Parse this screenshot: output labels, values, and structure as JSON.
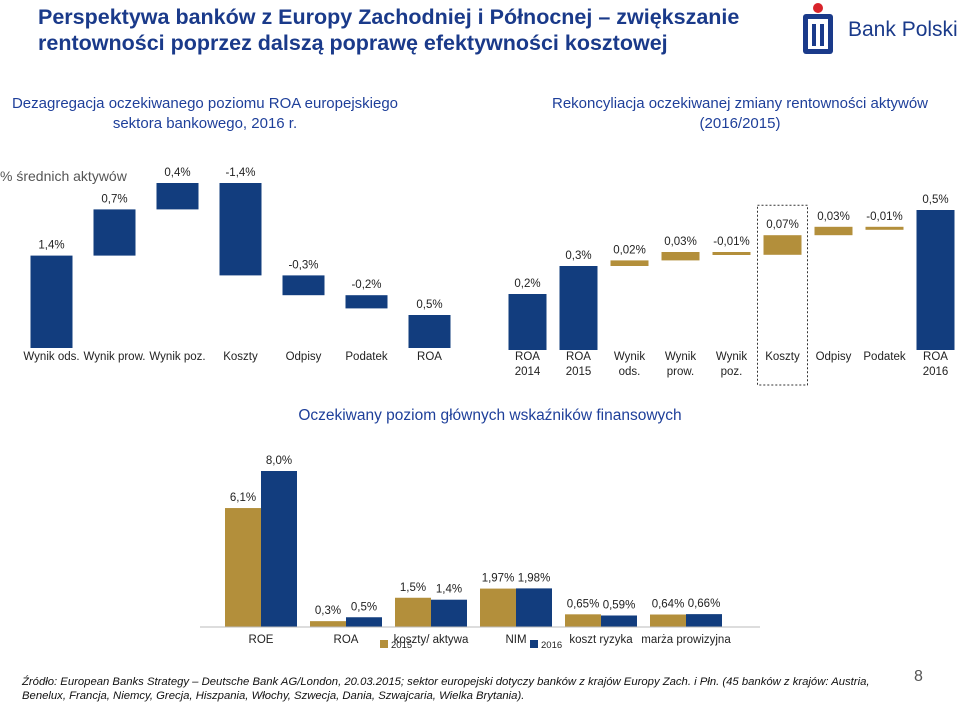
{
  "header": {
    "title": "Perspektywa banków z Europy Zachodniej i Północnej – zwiększanie rentowności poprzez dalszą poprawę efektywności kosztowej",
    "logo_text": "Bank Polski"
  },
  "colors": {
    "navy": "#123d7e",
    "gold": "#b38f3b",
    "title": "#1a3a8a"
  },
  "chart_data": [
    {
      "type": "bar",
      "title": "Dezagregacja oczekiwanego poziomu ROA europejskiego sektora bankowego, 2016 r.",
      "ylabel": "% średnich aktywów",
      "categories": [
        "Wynik ods.",
        "Wynik prow.",
        "Wynik poz.",
        "Koszty",
        "Odpisy",
        "Podatek",
        "ROA"
      ],
      "values": [
        1.4,
        0.7,
        0.4,
        -1.4,
        -0.3,
        -0.2,
        0.5
      ],
      "value_labels": [
        "1,4%",
        "0,7%",
        "0,4%",
        "-1,4%",
        "-0,3%",
        "-0,2%",
        "0,5%"
      ],
      "style": "waterfall"
    },
    {
      "type": "bar",
      "title": "Rekoncyliacja oczekiwanej zmiany rentowności aktywów (2016/2015)",
      "categories": [
        "ROA 2014",
        "ROA 2015",
        "Wynik ods.",
        "Wynik prow.",
        "Wynik poz.",
        "Koszty",
        "Odpisy",
        "Podatek",
        "ROA 2016"
      ],
      "category_lines": [
        [
          "ROA",
          "2014"
        ],
        [
          "ROA",
          "2015"
        ],
        [
          "Wynik",
          "ods."
        ],
        [
          "Wynik",
          "prow."
        ],
        [
          "Wynik",
          "poz."
        ],
        [
          "Koszty"
        ],
        [
          "Odpisy"
        ],
        [
          "Podatek"
        ],
        [
          "ROA",
          "2016"
        ]
      ],
      "values": [
        0.2,
        0.3,
        0.02,
        0.03,
        -0.01,
        0.07,
        0.03,
        -0.01,
        0.5
      ],
      "value_labels": [
        "0,2%",
        "0,3%",
        "0,02%",
        "0,03%",
        "-0,01%",
        "0,07%",
        "0,03%",
        "-0,01%",
        "0,5%"
      ],
      "style": "waterfall",
      "highlight_category": "Koszty"
    },
    {
      "type": "bar",
      "title": "Oczekiwany poziom głównych wskaźników finansowych",
      "categories": [
        "ROE",
        "ROA",
        "koszty/ aktywa",
        "NIM",
        "koszt ryzyka",
        "marża prowizyjna"
      ],
      "series": [
        {
          "name": "2015",
          "values": [
            6.1,
            0.3,
            1.5,
            1.97,
            0.65,
            0.64
          ],
          "value_labels": [
            "6,1%",
            "0,3%",
            "1,5%",
            "1,97%",
            "0,65%",
            "0,64%"
          ]
        },
        {
          "name": "2016",
          "values": [
            8.0,
            0.5,
            1.4,
            1.98,
            0.59,
            0.66
          ],
          "value_labels": [
            "8,0%",
            "0,5%",
            "1,4%",
            "1,98%",
            "0,59%",
            "0,66%"
          ]
        }
      ]
    }
  ],
  "footer": {
    "source_line1": "Źródło: European Banks Strategy – Deutsche Bank AG/London, 20.03.2015; sektor europejski dotyczy banków z krajów Europy Zach. i Płn. (45 banków z krajów: Austria,",
    "source_line2": "Benelux, Francja, Niemcy, Grecja, Hiszpania, Włochy, Szwecja, Dania, Szwajcaria, Wielka Brytania).",
    "page_number": "8"
  }
}
